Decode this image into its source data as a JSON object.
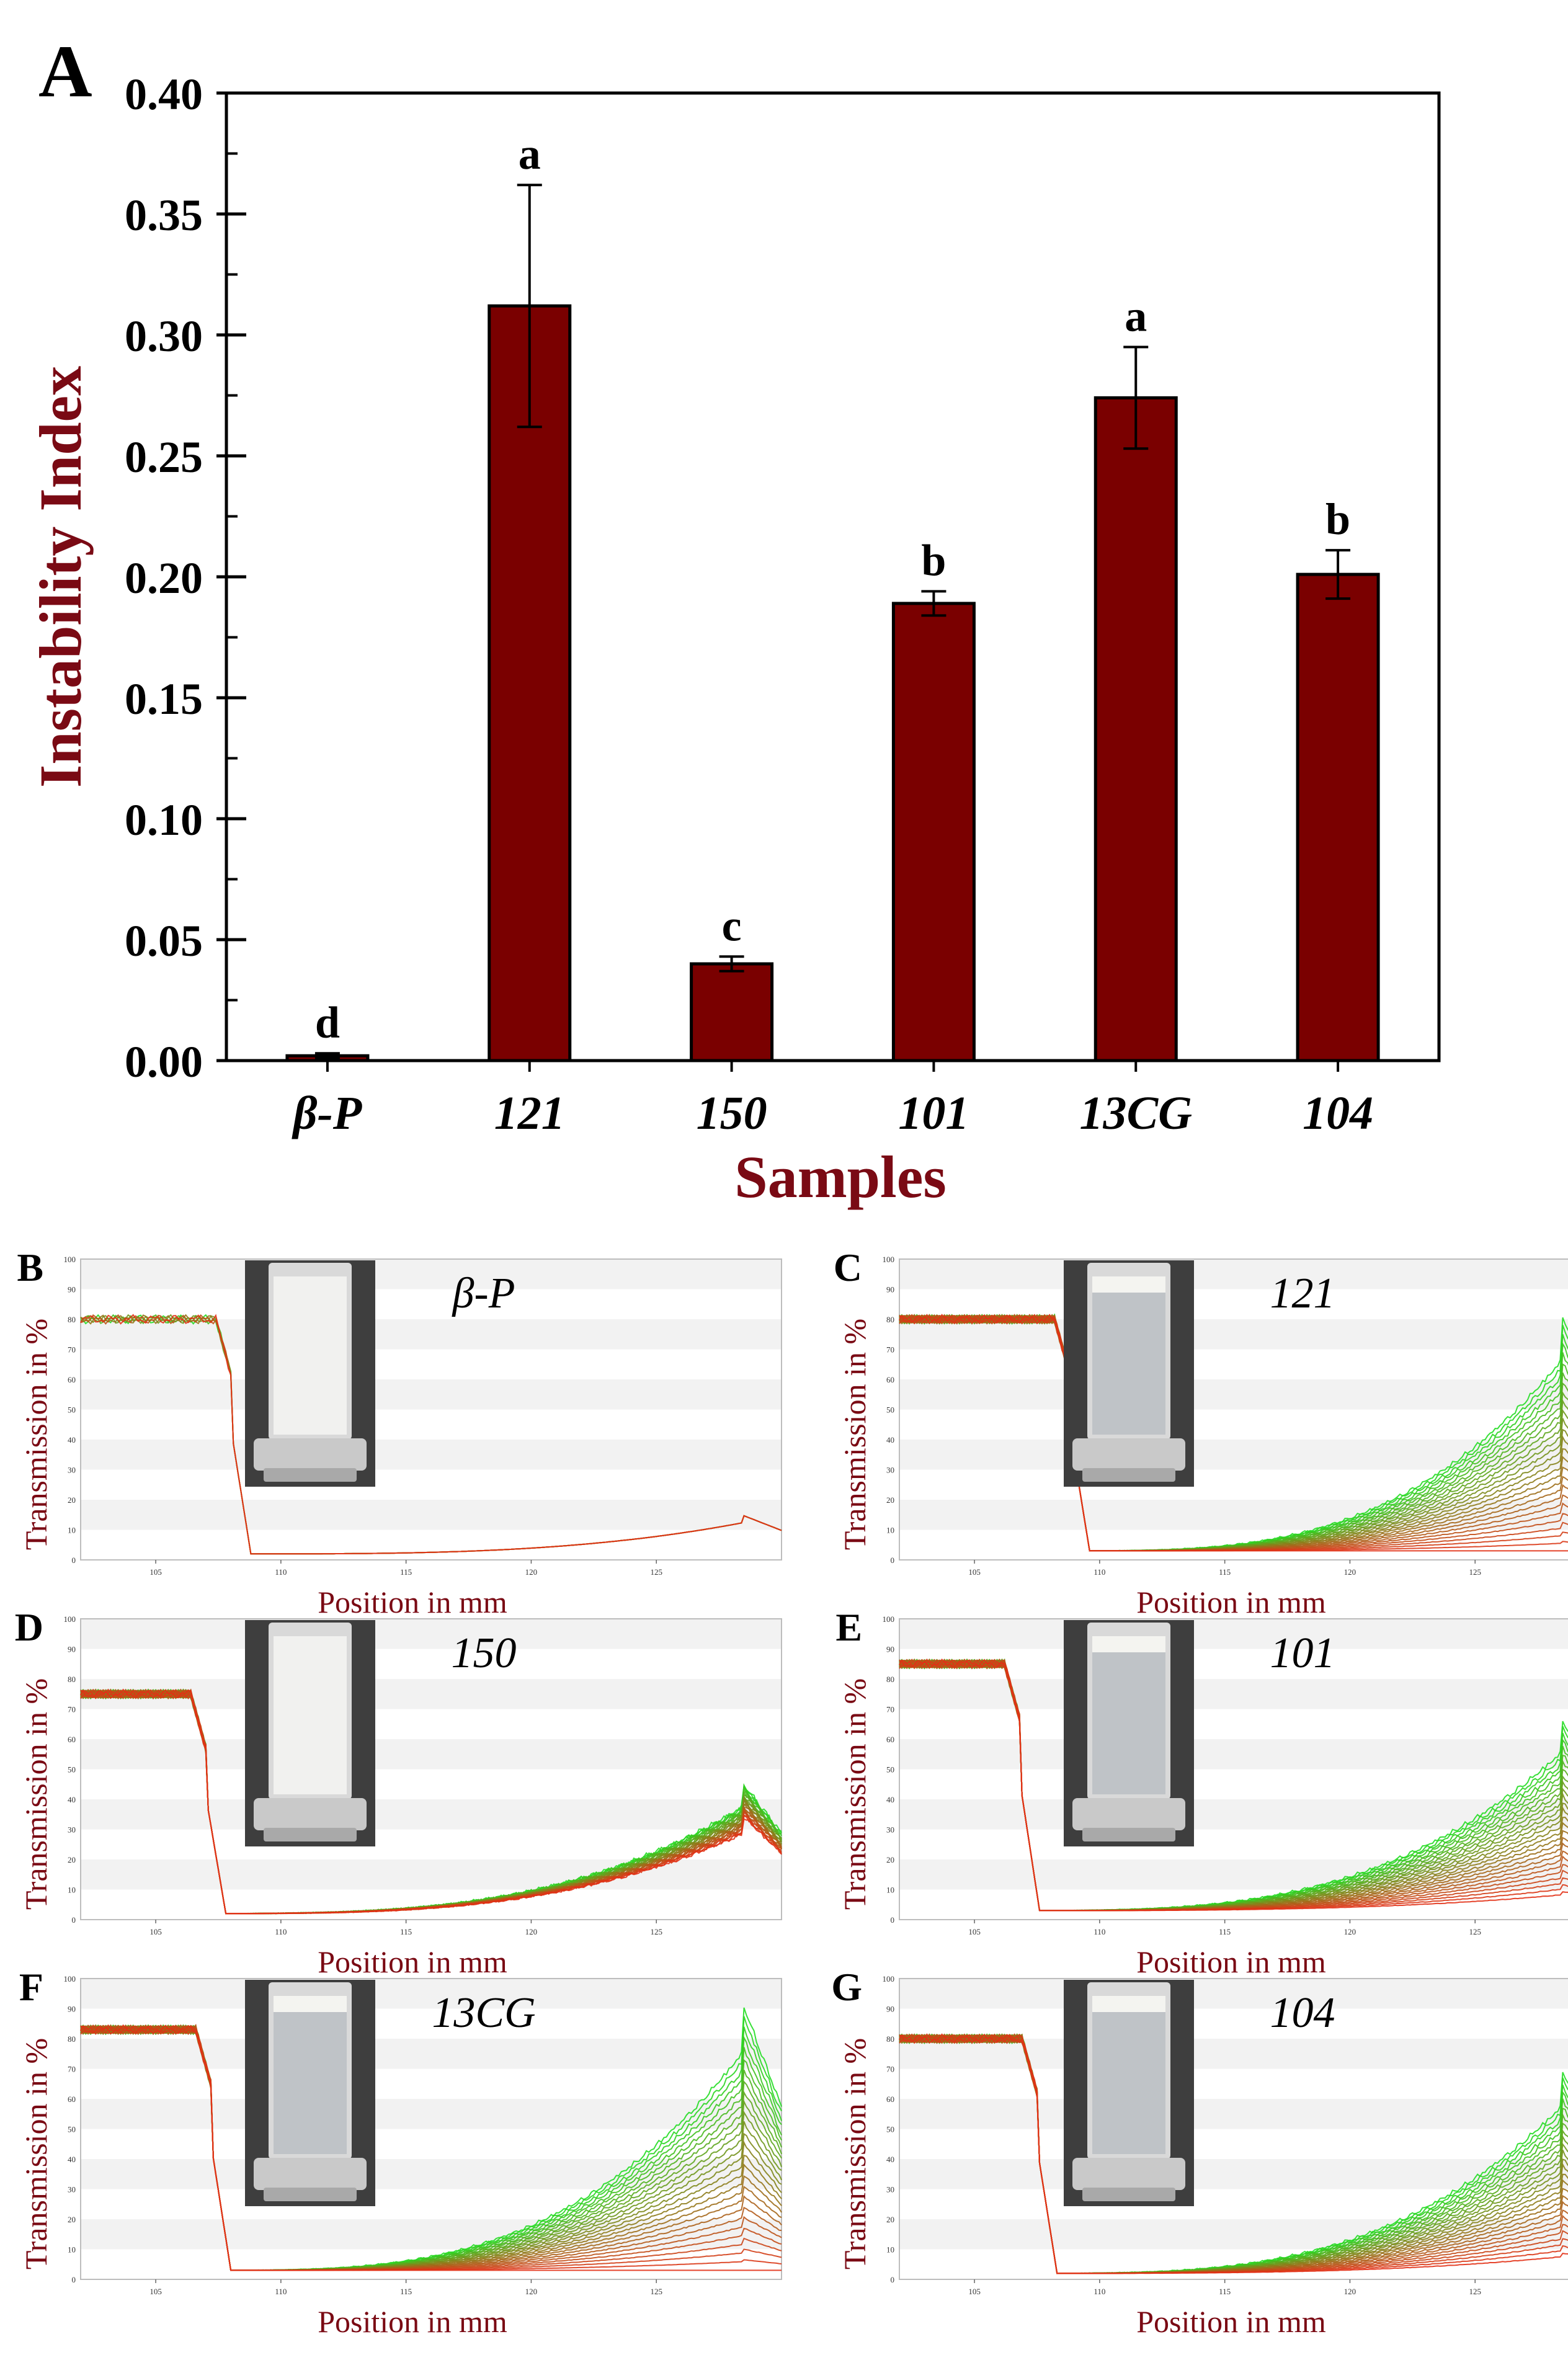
{
  "colors": {
    "bar": "#7a0000",
    "axis_title": "#7a0a14",
    "green": "#22dd22",
    "red": "#e23015",
    "vial_bg": "#3e3e3e"
  },
  "panelA": {
    "letter": "A",
    "ylabel": "Instability Index",
    "xlabel": "Samples",
    "yticks": [
      "0.00",
      "0.05",
      "0.10",
      "0.15",
      "0.20",
      "0.25",
      "0.30",
      "0.35",
      "0.40"
    ]
  },
  "chart_data": [
    {
      "type": "bar",
      "title": "",
      "categories": [
        "β-P",
        "121",
        "150",
        "101",
        "13CG",
        "104"
      ],
      "values": [
        0.002,
        0.312,
        0.04,
        0.189,
        0.274,
        0.201
      ],
      "errors": [
        0.001,
        0.05,
        0.003,
        0.005,
        0.021,
        0.01
      ],
      "letters": [
        "d",
        "a",
        "c",
        "b",
        "a",
        "b"
      ],
      "xlabel": "Samples",
      "ylabel": "Instability Index",
      "ylim": [
        0,
        0.4
      ]
    },
    {
      "type": "line",
      "panels": [
        {
          "letter": "B",
          "sample": "β-P",
          "start": 80,
          "drop_at": 108.0,
          "low": 2,
          "end_rise": 15,
          "spread": 0
        },
        {
          "letter": "C",
          "sample": "121",
          "start": 80,
          "drop_at": 108.8,
          "low": 3,
          "end_rise": 82,
          "spread": 1
        },
        {
          "letter": "D",
          "sample": "150",
          "start": 75,
          "drop_at": 107.0,
          "low": 2,
          "end_rise": 45,
          "spread": 0.25
        },
        {
          "letter": "E",
          "sample": "101",
          "start": 85,
          "drop_at": 106.8,
          "low": 3,
          "end_rise": 67,
          "spread": 0.9
        },
        {
          "letter": "F",
          "sample": "13CG",
          "start": 83,
          "drop_at": 107.2,
          "low": 3,
          "end_rise": 92,
          "spread": 1
        },
        {
          "letter": "G",
          "sample": "104",
          "start": 80,
          "drop_at": 107.5,
          "low": 2,
          "end_rise": 70,
          "spread": 0.9
        }
      ],
      "xlabel": "Position in mm",
      "ylabel": "Transmission in %",
      "xlim": [
        102,
        130
      ],
      "ylim": [
        0,
        100
      ],
      "xticks": [
        "105",
        "110",
        "115",
        "120",
        "125"
      ],
      "yticks": [
        "0",
        "10",
        "20",
        "30",
        "40",
        "50",
        "60",
        "70",
        "80",
        "90",
        "100"
      ]
    }
  ]
}
